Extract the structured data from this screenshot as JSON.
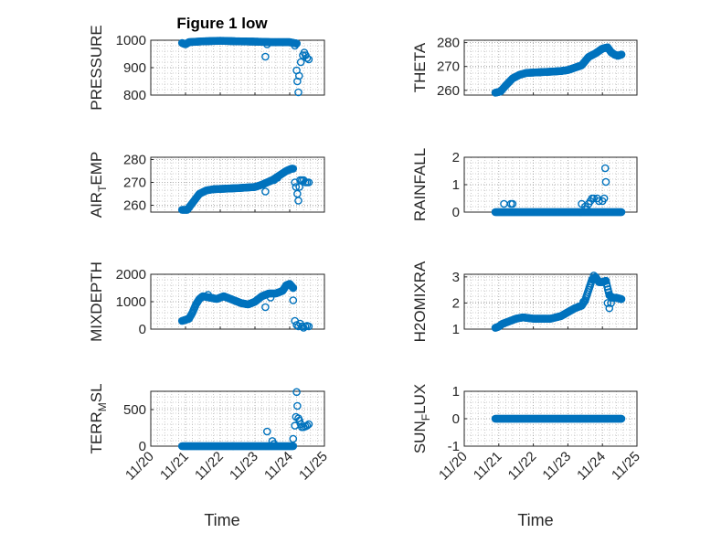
{
  "chart_data": {
    "type": "scatter",
    "title": "Figure 1 low",
    "marker_color": "#0072BD",
    "marker": "open-circle",
    "grid": "minor-dotted",
    "x_tick_labels": [
      "11/20",
      "11/21",
      "11/22",
      "11/23",
      "11/24",
      "11/25"
    ],
    "x_ticks": [
      "2023-11-20",
      "2023-11-21",
      "2023-11-22",
      "2023-11-23",
      "2023-11-24",
      "2023-11-25"
    ],
    "xlim": [
      "2023-11-20",
      "2023-11-25"
    ],
    "panels": [
      {
        "id": "pressure",
        "ylabel": "PRESSURE",
        "ylim": [
          800,
          1000
        ],
        "yticks": [
          800,
          900,
          1000
        ],
        "ytick_labels": [
          "800",
          "900",
          "1000"
        ],
        "curve": [
          [
            0.9,
            990
          ],
          [
            1.0,
            985
          ],
          [
            1.1,
            993
          ],
          [
            1.5,
            996
          ],
          [
            2.0,
            998
          ],
          [
            2.5,
            996
          ],
          [
            3.0,
            995
          ],
          [
            3.5,
            993
          ],
          [
            4.0,
            993
          ],
          [
            4.2,
            988
          ]
        ],
        "curve_step": 0.02,
        "extra_points": [
          [
            3.3,
            940
          ],
          [
            3.35,
            985
          ],
          [
            4.15,
            980
          ],
          [
            4.2,
            890
          ],
          [
            4.22,
            850
          ],
          [
            4.25,
            810
          ],
          [
            4.27,
            870
          ],
          [
            4.32,
            920
          ],
          [
            4.38,
            945
          ],
          [
            4.42,
            955
          ],
          [
            4.46,
            945
          ],
          [
            4.5,
            935
          ],
          [
            4.55,
            930
          ]
        ]
      },
      {
        "id": "theta",
        "ylabel": "THETA",
        "ylim": [
          258,
          281
        ],
        "yticks": [
          260,
          270,
          280
        ],
        "ytick_labels": [
          "260",
          "270",
          "280"
        ],
        "curve": [
          [
            0.9,
            259
          ],
          [
            1.05,
            259.5
          ],
          [
            1.2,
            262
          ],
          [
            1.4,
            265
          ],
          [
            1.6,
            266.5
          ],
          [
            1.8,
            267.3
          ],
          [
            2.5,
            267.8
          ],
          [
            2.8,
            268.1
          ],
          [
            3.0,
            268.5
          ],
          [
            3.2,
            269.5
          ],
          [
            3.4,
            270.5
          ],
          [
            3.6,
            274
          ],
          [
            3.8,
            275.5
          ],
          [
            4.0,
            277.5
          ],
          [
            4.15,
            278
          ],
          [
            4.25,
            276
          ],
          [
            4.35,
            275
          ],
          [
            4.45,
            274.5
          ],
          [
            4.55,
            275
          ]
        ],
        "curve_step": 0.02,
        "extra_points": []
      },
      {
        "id": "air_temp",
        "ylabel": "AIR",
        "ylabel_sub": "T",
        "ylabel_tail": "EMP",
        "ylim": [
          257,
          281
        ],
        "yticks": [
          260,
          270,
          280
        ],
        "ytick_labels": [
          "260",
          "270",
          "280"
        ],
        "curve": [
          [
            0.9,
            258
          ],
          [
            1.05,
            258
          ],
          [
            1.2,
            261
          ],
          [
            1.4,
            265
          ],
          [
            1.6,
            266.5
          ],
          [
            1.8,
            267
          ],
          [
            2.5,
            267.5
          ],
          [
            3.0,
            268
          ],
          [
            3.2,
            269
          ],
          [
            3.5,
            271
          ],
          [
            3.7,
            273
          ],
          [
            3.9,
            275
          ],
          [
            4.05,
            276
          ],
          [
            4.1,
            276
          ]
        ],
        "curve_step": 0.02,
        "extra_points": [
          [
            3.3,
            266
          ],
          [
            3.55,
            271
          ],
          [
            3.65,
            272
          ],
          [
            4.15,
            270
          ],
          [
            4.18,
            268
          ],
          [
            4.22,
            265
          ],
          [
            4.25,
            262
          ],
          [
            4.28,
            268
          ],
          [
            4.3,
            271
          ],
          [
            4.35,
            271
          ],
          [
            4.4,
            271
          ],
          [
            4.45,
            270
          ],
          [
            4.5,
            270
          ],
          [
            4.55,
            270
          ]
        ]
      },
      {
        "id": "rainfall",
        "ylabel": "RAINFALL",
        "ylim": [
          0,
          2
        ],
        "yticks": [
          0,
          1,
          2
        ],
        "ytick_labels": [
          "0",
          "1",
          "2"
        ],
        "curve": [
          [
            0.9,
            0
          ],
          [
            4.55,
            0
          ]
        ],
        "curve_step": 0.02,
        "extra_points": [
          [
            1.15,
            0.3
          ],
          [
            1.35,
            0.3
          ],
          [
            1.4,
            0.3
          ],
          [
            3.4,
            0.3
          ],
          [
            3.5,
            0.2
          ],
          [
            3.55,
            0.1
          ],
          [
            3.6,
            0.3
          ],
          [
            3.65,
            0.4
          ],
          [
            3.7,
            0.5
          ],
          [
            3.75,
            0.5
          ],
          [
            3.85,
            0.5
          ],
          [
            3.9,
            0.4
          ],
          [
            4.0,
            0.4
          ],
          [
            4.05,
            0.5
          ],
          [
            4.08,
            1.6
          ],
          [
            4.1,
            1.1
          ]
        ]
      },
      {
        "id": "mixdepth",
        "ylabel": "MIXDEPTH",
        "ylim": [
          0,
          2000
        ],
        "yticks": [
          0,
          1000,
          2000
        ],
        "ytick_labels": [
          "0",
          "1000",
          "2000"
        ],
        "curve": [
          [
            0.9,
            300
          ],
          [
            1.1,
            380
          ],
          [
            1.2,
            600
          ],
          [
            1.3,
            900
          ],
          [
            1.4,
            1100
          ],
          [
            1.5,
            1200
          ],
          [
            1.7,
            1150
          ],
          [
            1.9,
            1100
          ],
          [
            2.1,
            1200
          ],
          [
            2.3,
            1100
          ],
          [
            2.6,
            950
          ],
          [
            2.8,
            900
          ],
          [
            3.0,
            1000
          ],
          [
            3.2,
            1200
          ],
          [
            3.4,
            1300
          ],
          [
            3.6,
            1300
          ],
          [
            3.8,
            1400
          ],
          [
            3.9,
            1600
          ],
          [
            4.0,
            1650
          ],
          [
            4.1,
            1500
          ]
        ],
        "curve_step": 0.02,
        "extra_points": [
          [
            1.65,
            1250
          ],
          [
            3.3,
            800
          ],
          [
            3.45,
            1150
          ],
          [
            4.1,
            1050
          ],
          [
            4.15,
            300
          ],
          [
            4.2,
            150
          ],
          [
            4.25,
            100
          ],
          [
            4.3,
            200
          ],
          [
            4.35,
            100
          ],
          [
            4.4,
            50
          ],
          [
            4.45,
            100
          ],
          [
            4.5,
            120
          ],
          [
            4.55,
            100
          ]
        ]
      },
      {
        "id": "h2omixra",
        "ylabel": "H2OMIXRA",
        "ylim": [
          1,
          3.1
        ],
        "yticks": [
          1,
          2,
          3
        ],
        "ytick_labels": [
          "1",
          "2",
          "3"
        ],
        "curve": [
          [
            0.9,
            1.05
          ],
          [
            1.0,
            1.1
          ],
          [
            1.1,
            1.2
          ],
          [
            1.3,
            1.3
          ],
          [
            1.5,
            1.4
          ],
          [
            1.7,
            1.45
          ],
          [
            2.0,
            1.4
          ],
          [
            2.5,
            1.4
          ],
          [
            2.8,
            1.5
          ],
          [
            3.0,
            1.65
          ],
          [
            3.2,
            1.8
          ],
          [
            3.4,
            1.9
          ],
          [
            3.5,
            2.1
          ],
          [
            3.6,
            2.5
          ],
          [
            3.7,
            2.9
          ],
          [
            3.8,
            3.0
          ],
          [
            3.9,
            2.8
          ],
          [
            4.0,
            2.8
          ],
          [
            4.1,
            2.85
          ],
          [
            4.2,
            2.3
          ],
          [
            4.3,
            2.2
          ],
          [
            4.4,
            2.2
          ],
          [
            4.55,
            2.15
          ]
        ],
        "curve_step": 0.02,
        "extra_points": [
          [
            3.45,
            2.05
          ],
          [
            3.75,
            3.05
          ],
          [
            4.15,
            2.0
          ],
          [
            4.2,
            1.8
          ],
          [
            4.25,
            2.0
          ]
        ]
      },
      {
        "id": "terr_msl",
        "ylabel": "TERR",
        "ylabel_sub": "M",
        "ylabel_tail": "SL",
        "ylim": [
          0,
          750
        ],
        "yticks": [
          0,
          500
        ],
        "ytick_labels": [
          "0",
          "500"
        ],
        "curve": [
          [
            0.9,
            0
          ],
          [
            4.1,
            0
          ]
        ],
        "curve_step": 0.02,
        "extra_points": [
          [
            3.35,
            200
          ],
          [
            3.5,
            70
          ],
          [
            3.55,
            30
          ],
          [
            4.1,
            100
          ],
          [
            4.15,
            280
          ],
          [
            4.18,
            400
          ],
          [
            4.2,
            740
          ],
          [
            4.22,
            550
          ],
          [
            4.25,
            380
          ],
          [
            4.28,
            350
          ],
          [
            4.32,
            300
          ],
          [
            4.35,
            260
          ],
          [
            4.4,
            260
          ],
          [
            4.45,
            270
          ],
          [
            4.5,
            280
          ],
          [
            4.55,
            300
          ]
        ]
      },
      {
        "id": "sun_flux",
        "ylabel": "SUN",
        "ylabel_sub": "F",
        "ylabel_tail": "LUX",
        "ylim": [
          -1,
          1
        ],
        "yticks": [
          -1,
          0,
          1
        ],
        "ytick_labels": [
          "-1",
          "0",
          "1"
        ],
        "curve": [
          [
            0.9,
            0
          ],
          [
            4.55,
            0
          ]
        ],
        "curve_step": 0.02,
        "extra_points": []
      }
    ],
    "xlabel": "Time"
  }
}
